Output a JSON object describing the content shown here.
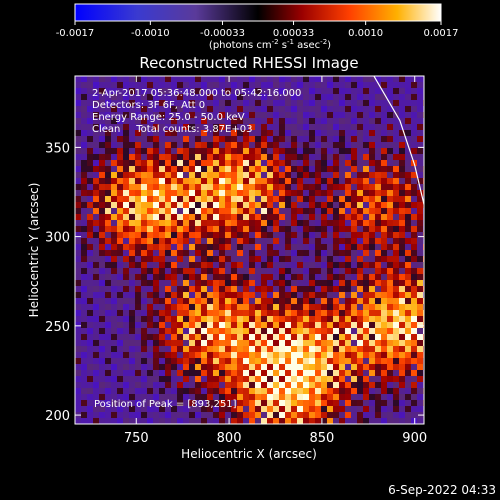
{
  "colorbar": {
    "ticks": [
      "-0.0017",
      "-0.0010",
      "-0.00033",
      "0.00033",
      "0.0010",
      "0.0017"
    ],
    "units_label": "(photons cm",
    "units_exp1": "-2",
    "units_mid": " s",
    "units_exp2": "-1",
    "units_mid2": " asec",
    "units_exp3": "-2",
    "units_close": ")",
    "range": [
      -0.0017,
      0.0017
    ]
  },
  "chart_data": {
    "type": "heatmap",
    "title": "Reconstructed RHESSI Image",
    "xlabel": "Heliocentric X (arcsec)",
    "ylabel": "Heliocentric Y (arcsec)",
    "xlim": [
      717,
      905
    ],
    "ylim": [
      195,
      390
    ],
    "xticks": [
      750,
      800,
      850,
      900
    ],
    "yticks": [
      200,
      250,
      300,
      350
    ],
    "annotations": [
      "2-Apr-2017 05:36:48.000 to 05:42:16.000",
      "Detectors: 3F 6F, Att 0",
      "Energy Range: 25.0 - 50.0 keV",
      "Clean     Total counts: 3.87E+03"
    ],
    "peak_label": "Position of Peak = [893,251]",
    "peak": [
      893,
      251
    ],
    "sources": [
      {
        "x": 754,
        "y": 318,
        "amp": 0.95
      },
      {
        "x": 805,
        "y": 328,
        "amp": 0.9
      },
      {
        "x": 790,
        "y": 250,
        "amp": 0.85
      },
      {
        "x": 840,
        "y": 238,
        "amp": 0.7
      },
      {
        "x": 893,
        "y": 251,
        "amp": 1.0
      },
      {
        "x": 880,
        "y": 320,
        "amp": 0.65
      },
      {
        "x": 830,
        "y": 210,
        "amp": 0.8
      }
    ],
    "limb_points": [
      [
        878,
        390
      ],
      [
        892,
        365
      ],
      [
        900,
        340
      ],
      [
        905,
        318
      ]
    ],
    "colors": {
      "limb": "#ffffff",
      "axes": "#ffffff",
      "background": "#000000"
    }
  },
  "footer": {
    "timestamp": "6-Sep-2022 04:33"
  }
}
